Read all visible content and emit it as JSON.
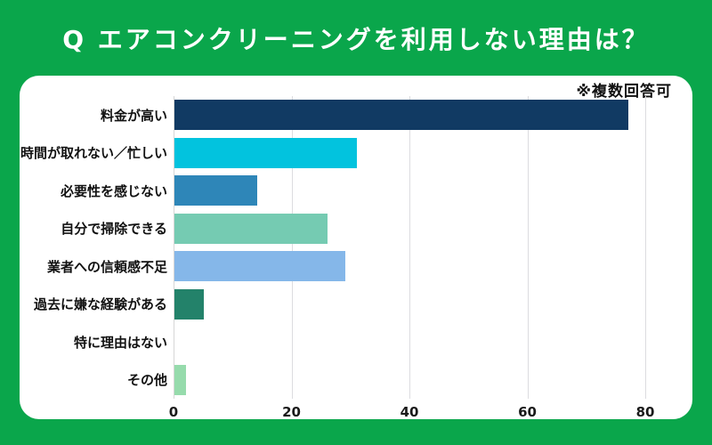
{
  "page": {
    "background_color": "#0AA64B",
    "card_color": "#FFFFFF",
    "title_color": "#FFFFFF",
    "label_color": "#111111",
    "gridline_color": "#DCDCE0",
    "axisline_color": "#D6D6D6"
  },
  "header": {
    "title": "Q エアコンクリーニングを利用しない理由は？"
  },
  "card": {
    "note": "※複数回答可"
  },
  "chart_data": {
    "type": "bar",
    "orientation": "horizontal",
    "title": "Q エアコンクリーニングを利用しない理由は？",
    "annotation": "※複数回答可",
    "categories": [
      "料金が高い",
      "時間が取れない／忙しい",
      "必要性を感じない",
      "自分で掃除できる",
      "業者への信頼感不足",
      "過去に嫌な経験がある",
      "特に理由はない",
      "その他"
    ],
    "values": [
      77,
      31,
      14,
      26,
      29,
      5,
      0,
      2
    ],
    "bar_colors": [
      "#113A63",
      "#02C3DE",
      "#2E86B8",
      "#75CBB2",
      "#85B7E9",
      "#23826A",
      null,
      "#96DBAC"
    ],
    "xlabel": "",
    "ylabel": "",
    "xlim": [
      0,
      88
    ],
    "xticks": [
      0,
      20,
      40,
      60,
      80
    ],
    "grid": true,
    "legend": "none"
  }
}
